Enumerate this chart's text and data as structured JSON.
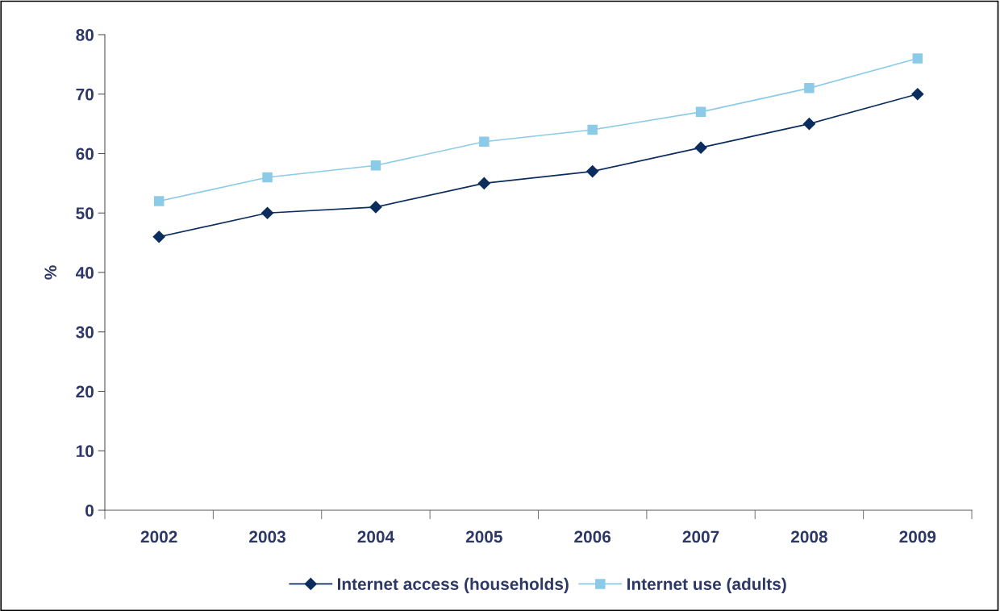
{
  "chart_data": {
    "type": "line",
    "ylabel": "%",
    "categories": [
      "2002",
      "2003",
      "2004",
      "2005",
      "2006",
      "2007",
      "2008",
      "2009"
    ],
    "series": [
      {
        "name": "Internet access (households)",
        "color": "#0b2d5e",
        "marker": "diamond",
        "values": [
          46,
          50,
          51,
          55,
          57,
          61,
          65,
          70
        ]
      },
      {
        "name": "Internet use (adults)",
        "color": "#8ccbe8",
        "marker": "square",
        "values": [
          52,
          56,
          58,
          62,
          64,
          67,
          71,
          76
        ]
      }
    ],
    "ylim": [
      0,
      80
    ],
    "yticks": [
      0,
      10,
      20,
      30,
      40,
      50,
      60,
      70,
      80
    ],
    "grid": false,
    "legend": "bottom"
  }
}
